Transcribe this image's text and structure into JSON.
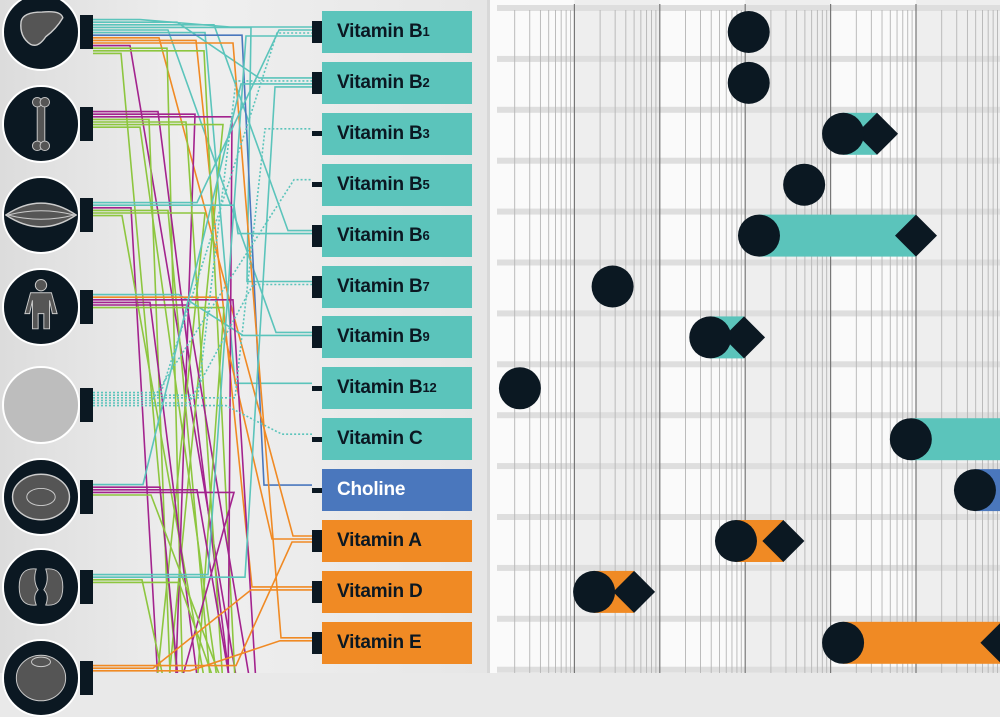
{
  "colors": {
    "b_vitamins": "#5bc4bb",
    "choline": "#4a77bd",
    "fat_soluble": "#f08a24",
    "marker": "#0b1822",
    "green": "#8dc63f",
    "magenta": "#a3238e"
  },
  "organs": [
    {
      "icon": "liver-icon"
    },
    {
      "icon": "bone-icon"
    },
    {
      "icon": "muscle-icon"
    },
    {
      "icon": "human-body-icon"
    },
    {
      "icon": "blank-circle-icon"
    },
    {
      "icon": "eye-icon"
    },
    {
      "icon": "kidney-icon"
    },
    {
      "icon": "brain-icon"
    }
  ],
  "nutrients": [
    {
      "name": "Vitamin B",
      "sub": "1",
      "group": "b_vitamins"
    },
    {
      "name": "Vitamin B",
      "sub": "2",
      "group": "b_vitamins"
    },
    {
      "name": "Vitamin B",
      "sub": "3",
      "group": "b_vitamins"
    },
    {
      "name": "Vitamin B",
      "sub": "5",
      "group": "b_vitamins"
    },
    {
      "name": "Vitamin B",
      "sub": "6",
      "group": "b_vitamins"
    },
    {
      "name": "Vitamin B",
      "sub": "7",
      "group": "b_vitamins"
    },
    {
      "name": "Vitamin B",
      "sub": "9",
      "group": "b_vitamins"
    },
    {
      "name": "Vitamin B",
      "sub": "12",
      "group": "b_vitamins"
    },
    {
      "name": "Vitamin C",
      "sub": "",
      "group": "b_vitamins"
    },
    {
      "name": "Choline",
      "sub": "",
      "group": "choline"
    },
    {
      "name": "Vitamin A",
      "sub": "",
      "group": "fat_soluble"
    },
    {
      "name": "Vitamin D",
      "sub": "",
      "group": "fat_soluble"
    },
    {
      "name": "Vitamin E",
      "sub": "",
      "group": "fat_soluble"
    }
  ],
  "links": [
    [
      0,
      0,
      "b_vitamins"
    ],
    [
      0,
      1,
      "b_vitamins"
    ],
    [
      0,
      4,
      "b_vitamins"
    ],
    [
      0,
      5,
      "b_vitamins"
    ],
    [
      0,
      6,
      "b_vitamins"
    ],
    [
      0,
      7,
      "b_vitamins"
    ],
    [
      0,
      9,
      "choline"
    ],
    [
      0,
      10,
      "fat_soluble"
    ],
    [
      0,
      11,
      "fat_soluble"
    ],
    [
      0,
      12,
      "fat_soluble"
    ],
    [
      0,
      -1,
      "magenta"
    ],
    [
      0,
      -1,
      "green"
    ],
    [
      0,
      -1,
      "green"
    ],
    [
      0,
      -1,
      "green"
    ],
    [
      1,
      -1,
      "magenta"
    ],
    [
      1,
      -1,
      "magenta"
    ],
    [
      1,
      -1,
      "magenta"
    ],
    [
      1,
      -1,
      "green"
    ],
    [
      1,
      -1,
      "green"
    ],
    [
      1,
      -1,
      "green"
    ],
    [
      1,
      -1,
      "green"
    ],
    [
      2,
      0,
      "b_vitamins"
    ],
    [
      2,
      4,
      "b_vitamins"
    ],
    [
      2,
      -1,
      "magenta"
    ],
    [
      2,
      -1,
      "green"
    ],
    [
      2,
      -1,
      "green"
    ],
    [
      2,
      -1,
      "green"
    ],
    [
      3,
      6,
      "b_vitamins"
    ],
    [
      3,
      10,
      "fat_soluble"
    ],
    [
      3,
      -1,
      "magenta"
    ],
    [
      3,
      -1,
      "magenta"
    ],
    [
      3,
      -1,
      "magenta"
    ],
    [
      3,
      -1,
      "green"
    ],
    [
      4,
      0,
      "b_vitamins"
    ],
    [
      4,
      1,
      "b_vitamins"
    ],
    [
      4,
      2,
      "b_vitamins"
    ],
    [
      4,
      3,
      "b_vitamins"
    ],
    [
      4,
      5,
      "b_vitamins"
    ],
    [
      4,
      8,
      "b_vitamins"
    ],
    [
      5,
      1,
      "b_vitamins"
    ],
    [
      5,
      -1,
      "magenta"
    ],
    [
      5,
      -1,
      "magenta"
    ],
    [
      5,
      -1,
      "magenta"
    ],
    [
      5,
      -1,
      "green"
    ],
    [
      6,
      0,
      "b_vitamins"
    ],
    [
      6,
      1,
      "b_vitamins"
    ],
    [
      6,
      -1,
      "green"
    ],
    [
      6,
      -1,
      "green"
    ],
    [
      7,
      10,
      "fat_soluble"
    ],
    [
      7,
      11,
      "fat_soluble"
    ],
    [
      7,
      12,
      "fat_soluble"
    ]
  ],
  "chart_data": {
    "type": "range",
    "scale": "log",
    "xlim": [
      1,
      1000000
    ],
    "grid": true,
    "rows": [
      {
        "nutrient": "Vitamin B1",
        "circle": 1100,
        "diamond": null
      },
      {
        "nutrient": "Vitamin B2",
        "circle": 1100,
        "diamond": null
      },
      {
        "nutrient": "Vitamin B3",
        "circle": 14000,
        "diamond": 35000
      },
      {
        "nutrient": "Vitamin B5",
        "circle": 4900,
        "diamond": null
      },
      {
        "nutrient": "Vitamin B6",
        "circle": 1450,
        "diamond": 100000
      },
      {
        "nutrient": "Vitamin B7",
        "circle": 28,
        "diamond": null
      },
      {
        "nutrient": "Vitamin B9",
        "circle": 390,
        "diamond": 970
      },
      {
        "nutrient": "Vitamin B12",
        "circle": 2.3,
        "diamond": null
      },
      {
        "nutrient": "Vitamin C",
        "circle": 87000,
        "diamond": ">1000000"
      },
      {
        "nutrient": "Choline",
        "circle": 490000,
        "diamond": ">1000000"
      },
      {
        "nutrient": "Vitamin A",
        "circle": 780,
        "diamond": 2800
      },
      {
        "nutrient": "Vitamin D",
        "circle": 17,
        "diamond": 50
      },
      {
        "nutrient": "Vitamin E",
        "circle": 14000,
        "diamond": 1000000
      }
    ]
  }
}
